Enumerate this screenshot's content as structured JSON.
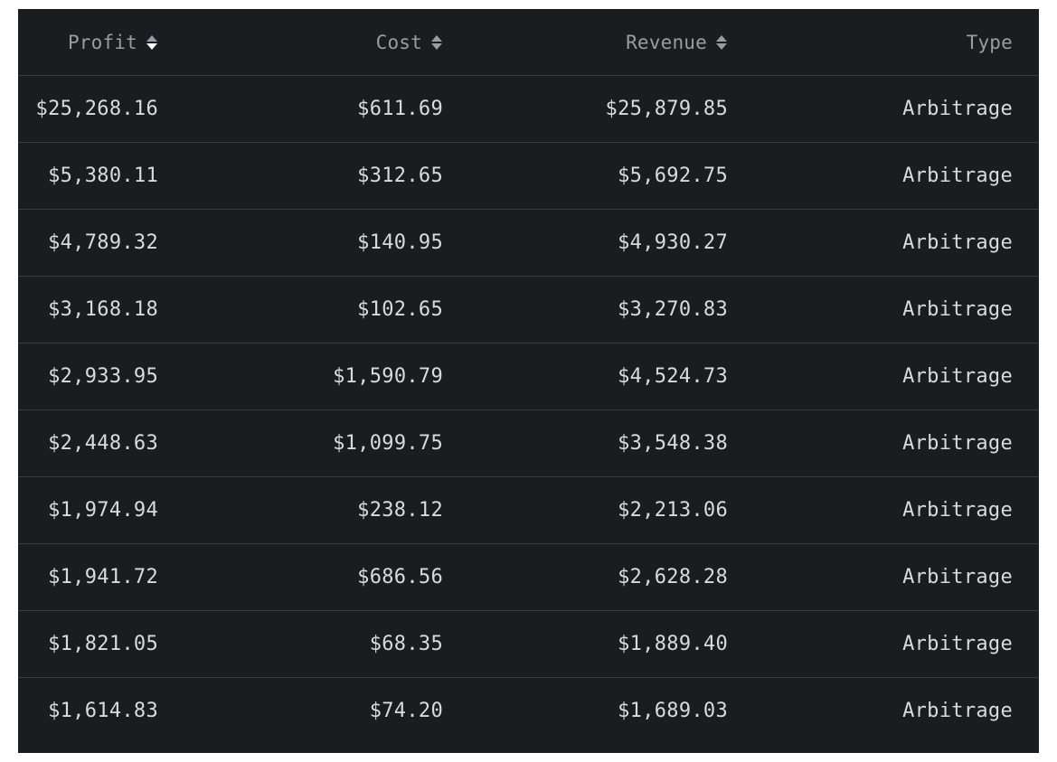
{
  "table": {
    "columns": [
      {
        "label": "Profit",
        "sortable": true,
        "sort": "desc"
      },
      {
        "label": "Cost",
        "sortable": true,
        "sort": "none"
      },
      {
        "label": "Revenue",
        "sortable": true,
        "sort": "none"
      },
      {
        "label": "Type",
        "sortable": false
      }
    ],
    "rows": [
      {
        "profit": "$25,268.16",
        "cost": "$611.69",
        "revenue": "$25,879.85",
        "type": "Arbitrage"
      },
      {
        "profit": "$5,380.11",
        "cost": "$312.65",
        "revenue": "$5,692.75",
        "type": "Arbitrage"
      },
      {
        "profit": "$4,789.32",
        "cost": "$140.95",
        "revenue": "$4,930.27",
        "type": "Arbitrage"
      },
      {
        "profit": "$3,168.18",
        "cost": "$102.65",
        "revenue": "$3,270.83",
        "type": "Arbitrage"
      },
      {
        "profit": "$2,933.95",
        "cost": "$1,590.79",
        "revenue": "$4,524.73",
        "type": "Arbitrage"
      },
      {
        "profit": "$2,448.63",
        "cost": "$1,099.75",
        "revenue": "$3,548.38",
        "type": "Arbitrage"
      },
      {
        "profit": "$1,974.94",
        "cost": "$238.12",
        "revenue": "$2,213.06",
        "type": "Arbitrage"
      },
      {
        "profit": "$1,941.72",
        "cost": "$686.56",
        "revenue": "$2,628.28",
        "type": "Arbitrage"
      },
      {
        "profit": "$1,821.05",
        "cost": "$68.35",
        "revenue": "$1,889.40",
        "type": "Arbitrage"
      },
      {
        "profit": "$1,614.83",
        "cost": "$74.20",
        "revenue": "$1,689.03",
        "type": "Arbitrage"
      }
    ]
  },
  "colors": {
    "background": "#1b1c20",
    "header_text": "#9a9ca3",
    "cell_text": "#d9dadf",
    "divider": "#3a3b40",
    "sort_active": "#ffffff",
    "sort_inactive": "#9a9ca3"
  },
  "icons": {
    "sort": "sort-updown-icon"
  }
}
